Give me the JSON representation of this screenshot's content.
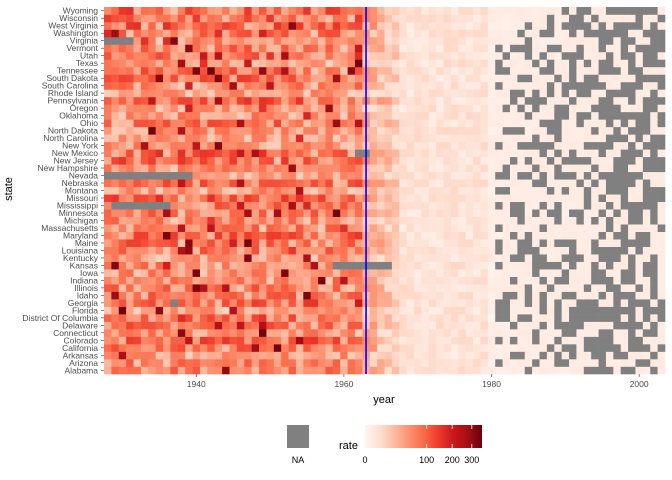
{
  "chart_data": {
    "type": "heatmap",
    "xlabel": "year",
    "ylabel": "state",
    "x_range": [
      1928,
      2003
    ],
    "x_ticks": [
      1940,
      1960,
      1980,
      2000
    ],
    "states": [
      "Alabama",
      "Arizona",
      "Arkansas",
      "California",
      "Colorado",
      "Connecticut",
      "Delaware",
      "District Of Columbia",
      "Florida",
      "Georgia",
      "Idaho",
      "Illinois",
      "Indiana",
      "Iowa",
      "Kansas",
      "Kentucky",
      "Louisiana",
      "Maine",
      "Maryland",
      "Massachusetts",
      "Michigan",
      "Minnesota",
      "Mississippi",
      "Missouri",
      "Montana",
      "Nebraska",
      "Nevada",
      "New Hampshire",
      "New Jersey",
      "New Mexico",
      "New York",
      "North Carolina",
      "North Dakota",
      "Ohio",
      "Oklahoma",
      "Oregon",
      "Pennsylvania",
      "Rhode Island",
      "South Carolina",
      "South Dakota",
      "Tennessee",
      "Texas",
      "Utah",
      "Vermont",
      "Virginia",
      "Washington",
      "West Virginia",
      "Wisconsin",
      "Wyoming"
    ],
    "vaccine_line": {
      "year": 1963,
      "color": "#0000ff"
    },
    "color_scale": {
      "name": "rate",
      "transform": "sqrt",
      "breaks": [
        0,
        100,
        200,
        300
      ],
      "colors": [
        "#fff5f0",
        "#fee0d2",
        "#fcbba1",
        "#fc9272",
        "#fb6a4a",
        "#ef3b2c",
        "#cb181d",
        "#a50f15",
        "#67000d"
      ],
      "na_color": "#808080",
      "na_label": "NA"
    },
    "na_spans": [
      {
        "state": "Virginia",
        "from": 1928,
        "to": 1931
      },
      {
        "state": "Nevada",
        "from": 1928,
        "to": 1939
      },
      {
        "state": "Mississippi",
        "from": 1929,
        "to": 1936
      },
      {
        "state": "New Mexico",
        "from": 1962,
        "to": 1963
      },
      {
        "state": "Kansas",
        "from": 1959,
        "to": 1966
      },
      {
        "state": "Georgia",
        "from": 1937,
        "to": 1937
      }
    ],
    "note": "Per-cell rates are not printed on the chart; the heatmap shows high rates (mostly 20-150 per 100k, peaks near 350) before 1963 and near-zero rates with increasing missing (NA) cells after 1980."
  }
}
